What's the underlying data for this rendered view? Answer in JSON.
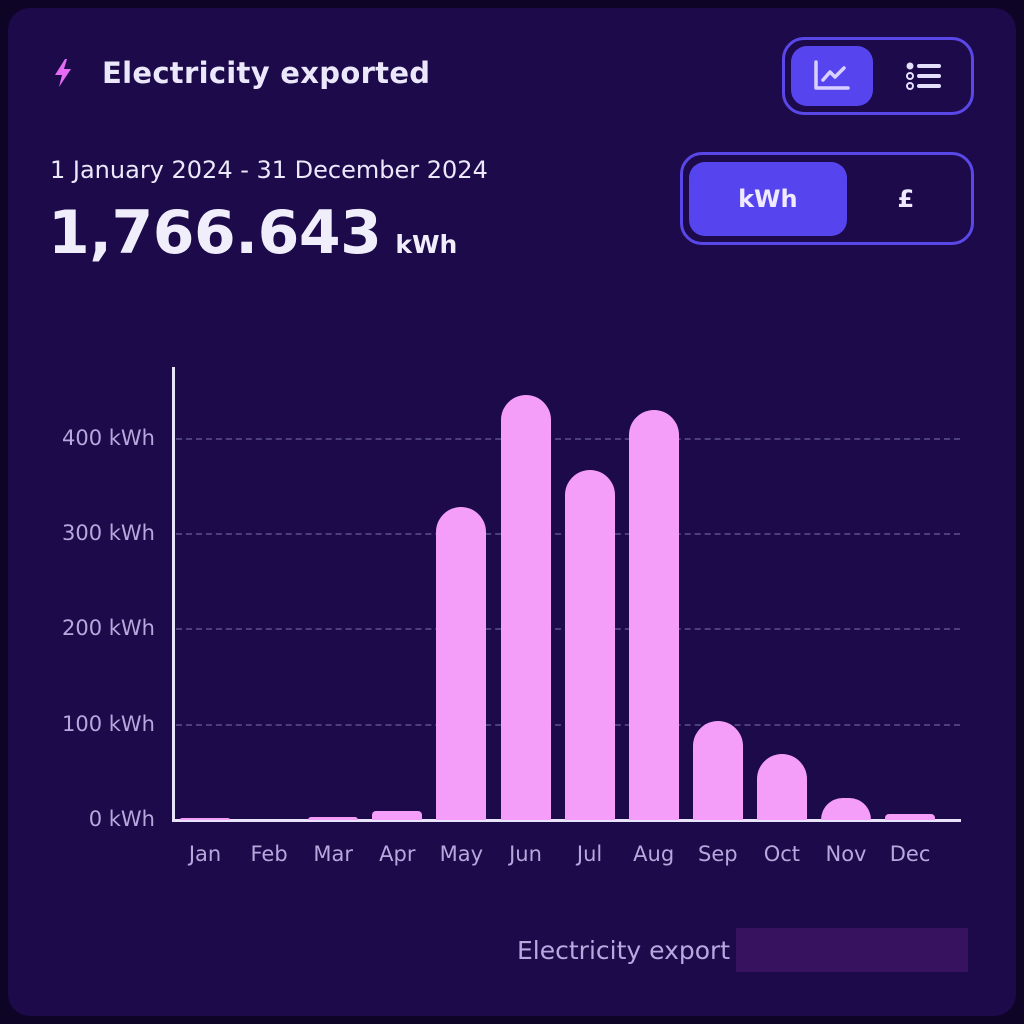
{
  "header": {
    "icon": "lightning-bolt-icon",
    "title": "Electricity exported"
  },
  "view_toggle": {
    "options": [
      {
        "name": "chart-view",
        "icon": "line-chart-icon",
        "active": true
      },
      {
        "name": "list-view",
        "icon": "list-icon",
        "active": false
      }
    ]
  },
  "summary": {
    "date_range": "1 January 2024 - 31 December 2024",
    "total_value": "1,766.643",
    "total_unit": "kWh"
  },
  "unit_toggle": {
    "options": [
      {
        "label": "kWh",
        "active": true
      },
      {
        "label": "£",
        "active": false
      }
    ]
  },
  "legend": {
    "label": "Electricity export"
  },
  "colors": {
    "background": "#1c0a4a",
    "accent": "#5645ef",
    "bar": "#f59ef9",
    "axis_text": "#b8a7dd",
    "legend_swatch": "#37135f"
  },
  "chart_data": {
    "type": "bar",
    "title": "Electricity exported",
    "xlabel": "",
    "ylabel": "kWh",
    "ylim": [
      0,
      450
    ],
    "yticks": [
      0,
      100,
      200,
      300,
      400
    ],
    "ytick_labels": [
      "0 kWh",
      "100 kWh",
      "200 kWh",
      "300 kWh",
      "400 kWh"
    ],
    "grid": "horizontal dashed",
    "legend_position": "bottom-right",
    "categories": [
      "Jan",
      "Feb",
      "Mar",
      "Apr",
      "May",
      "Jun",
      "Jul",
      "Aug",
      "Sep",
      "Oct",
      "Nov",
      "Dec"
    ],
    "series": [
      {
        "name": "Electricity export",
        "values": [
          2,
          0,
          3,
          9,
          328,
          446,
          367,
          430,
          104,
          69,
          23,
          6
        ]
      }
    ]
  }
}
